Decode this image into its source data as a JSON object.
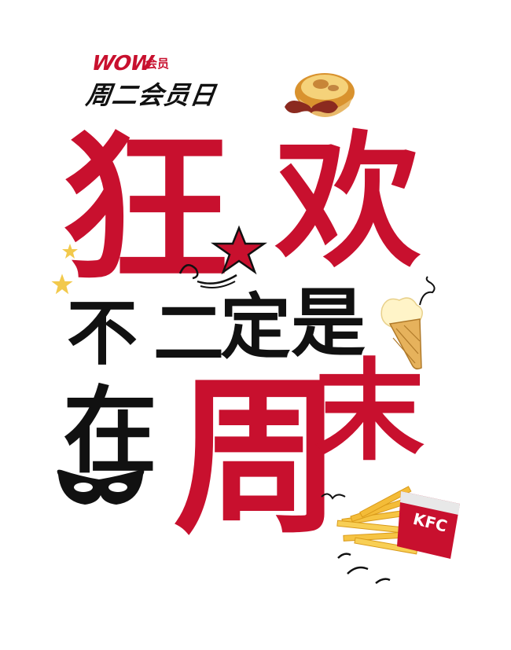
{
  "logo": {
    "wow": "WOW",
    "member": "会员"
  },
  "subtitle": "周二会员日",
  "headline": {
    "line1": [
      "狂",
      "欢"
    ],
    "line2": [
      "不",
      "二",
      "定",
      "是"
    ],
    "line3": [
      "在",
      "周",
      "末"
    ]
  },
  "colors": {
    "brand_red": "#c8102e",
    "text_black": "#111111",
    "star_yellow": "#f2c94c"
  },
  "icons": [
    "star-icon",
    "egg-tart-icon",
    "mustache-icon",
    "ice-cream-cone-icon",
    "mask-icon",
    "kfc-fries-icon"
  ],
  "fries_box": {
    "text": "KFC"
  }
}
